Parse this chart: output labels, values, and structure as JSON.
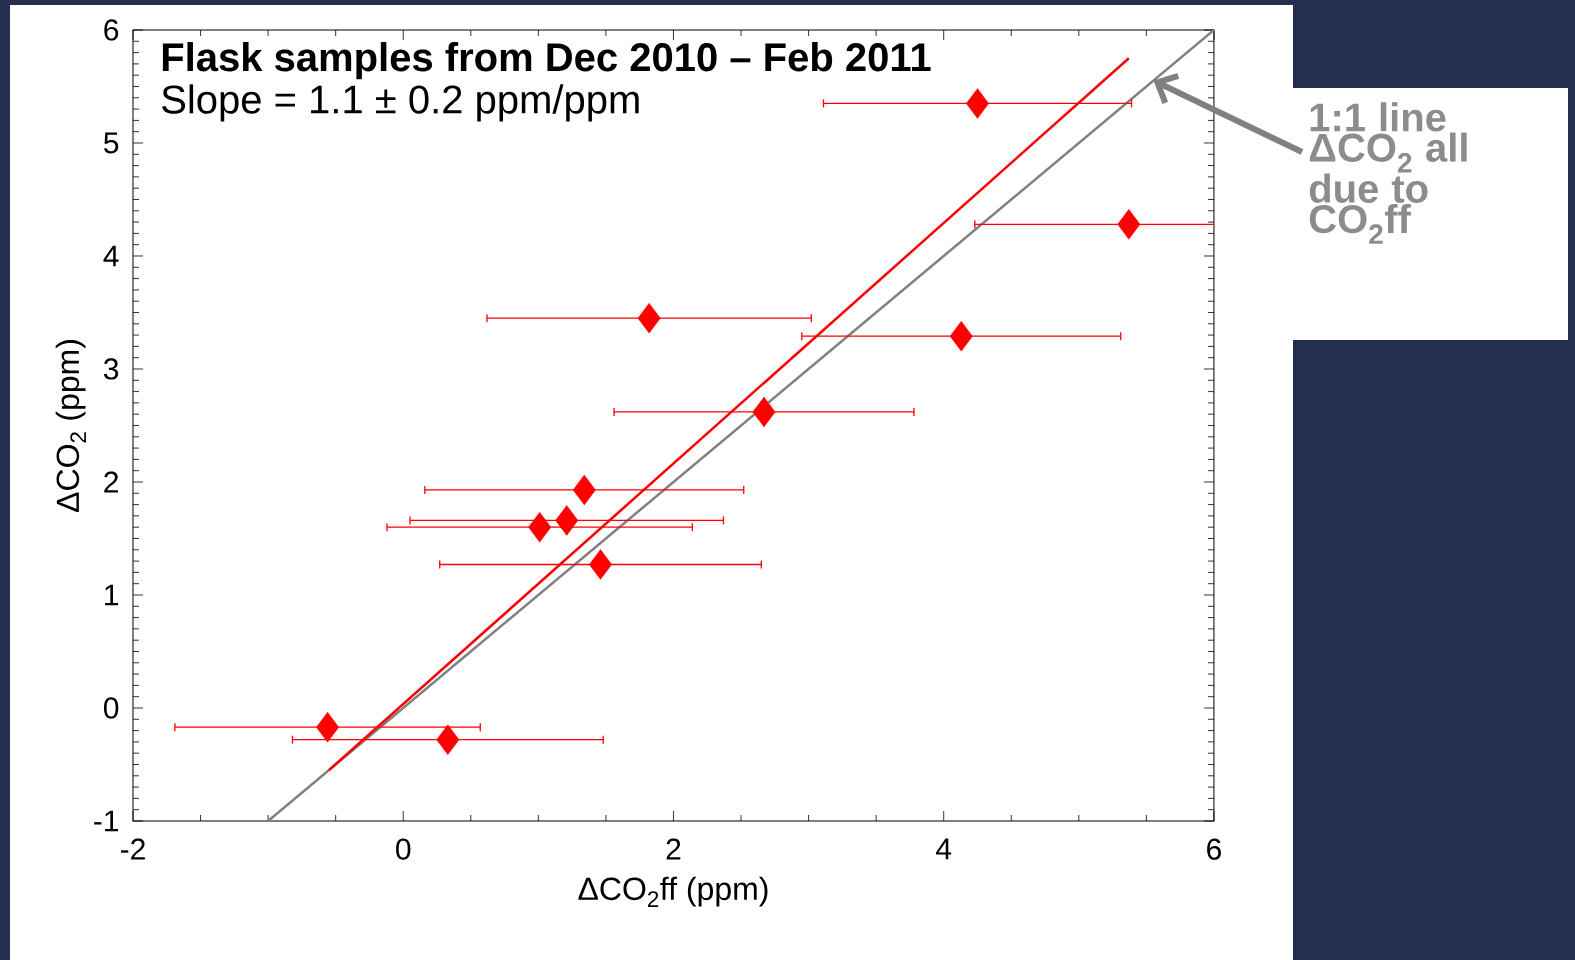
{
  "chart_data": {
    "type": "scatter",
    "title": "Flask samples from Dec 2010 – Feb 2011",
    "subtitle": "Slope = 1.1 ± 0.2 ppm/ppm",
    "xlabel": "ΔCO$_{2}$ff (ppm)",
    "ylabel": "ΔCO$_{2}$ (ppm)",
    "xlim": [
      -2,
      6
    ],
    "ylim": [
      -1,
      6
    ],
    "xticks": [
      -2,
      0,
      2,
      4,
      6
    ],
    "yticks": [
      -1,
      0,
      1,
      2,
      3,
      4,
      5,
      6
    ],
    "series": [
      {
        "type": "line",
        "color": "#808080",
        "x": [
          -1,
          6
        ],
        "values": [
          -1,
          6
        ]
      },
      {
        "type": "line",
        "color": "#ff0000",
        "x": [
          -0.55,
          5.37
        ],
        "values": [
          -0.55,
          5.75
        ]
      },
      {
        "type": "scatter",
        "marker": "diamond",
        "color": "#ff0000",
        "x": [
          4.25,
          5.37,
          1.82,
          4.13,
          2.67,
          1.34,
          1.01,
          1.21,
          1.46,
          -0.56,
          0.33
        ],
        "values": [
          5.35,
          4.28,
          3.45,
          3.29,
          2.62,
          1.93,
          1.6,
          1.66,
          1.27,
          -0.17,
          -0.28
        ],
        "xerrors": [
          1.14,
          1.14,
          1.2,
          1.18,
          1.11,
          1.18,
          1.13,
          1.16,
          1.19,
          1.13,
          1.15
        ]
      }
    ],
    "annotations": [
      "1:1 line ΔCO$_{2}$ all due to CO$_{2}$ff"
    ]
  }
}
